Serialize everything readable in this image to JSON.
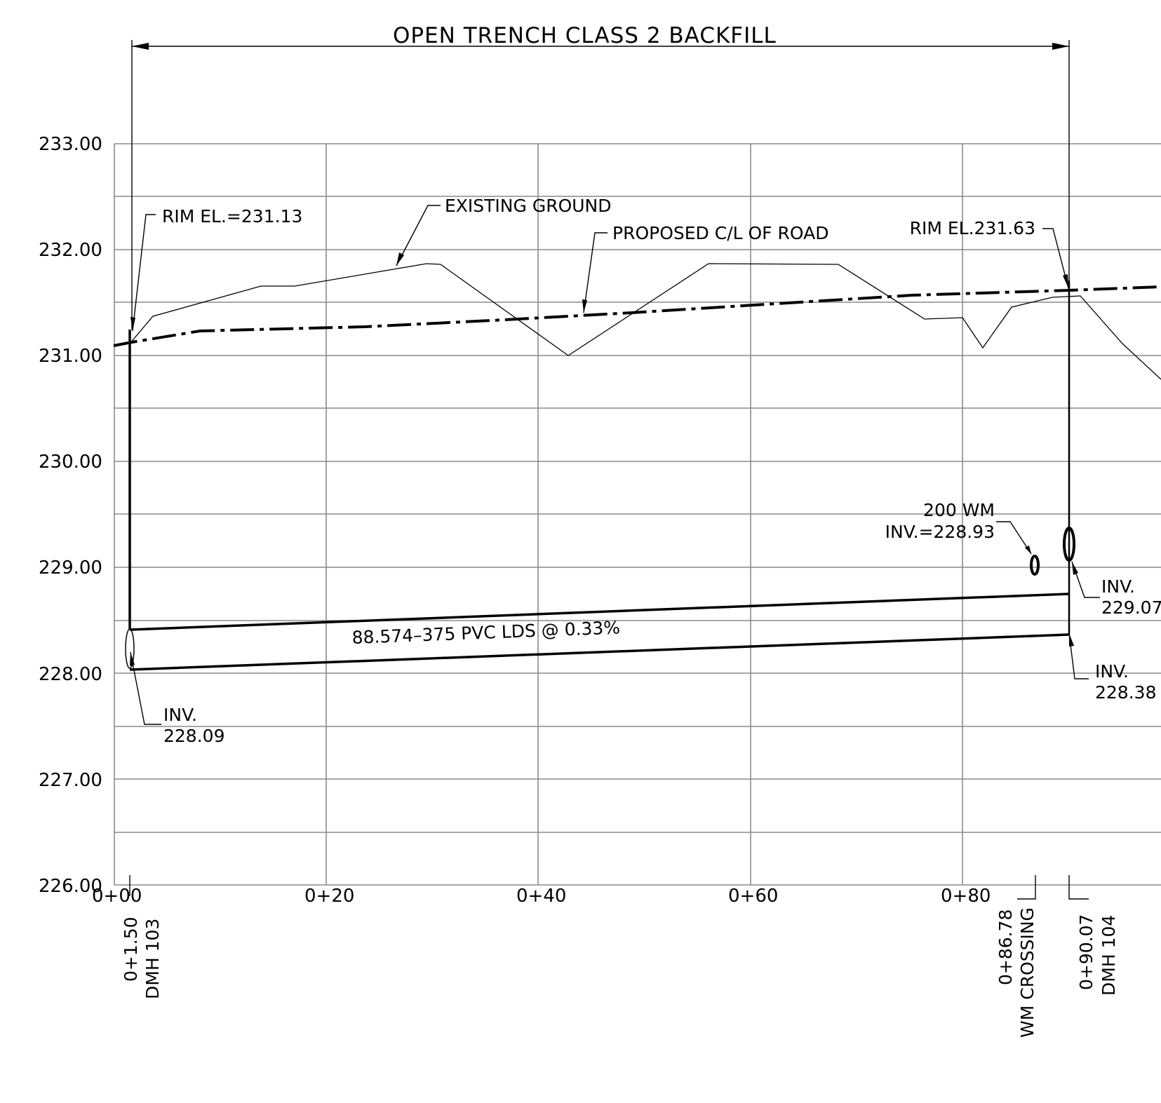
{
  "title": "OPEN TRENCH CLASS 2 BACKFILL",
  "y_axis": {
    "labels": [
      "233.00",
      "232.00",
      "231.00",
      "230.00",
      "229.00",
      "228.00",
      "227.00",
      "226.00"
    ]
  },
  "x_axis": {
    "labels": [
      "0+00",
      "0+20",
      "0+40",
      "0+60",
      "0+80"
    ]
  },
  "stations": [
    {
      "id": "dmh103",
      "station": "0+1.50",
      "name": "DMH 103"
    },
    {
      "id": "wm",
      "station": "0+86.78",
      "name": "WM CROSSING"
    },
    {
      "id": "dmh104",
      "station": "0+90.07",
      "name": "DMH 104"
    }
  ],
  "annotations": {
    "rim_103": "RIM EL.=231.13",
    "rim_104": "RIM EL.231.63",
    "existing_ground": "EXISTING GROUND",
    "proposed_road": "PROPOSED C/L OF ROAD",
    "wm_size": "200 WM",
    "wm_inv": "INV.=228.93",
    "inv_word": "INV.",
    "inv_103": "228.09",
    "inv_104_out": "229.07",
    "inv_104_in": "228.38",
    "pipe": "88.574–375 PVC LDS @ 0.33%"
  }
}
